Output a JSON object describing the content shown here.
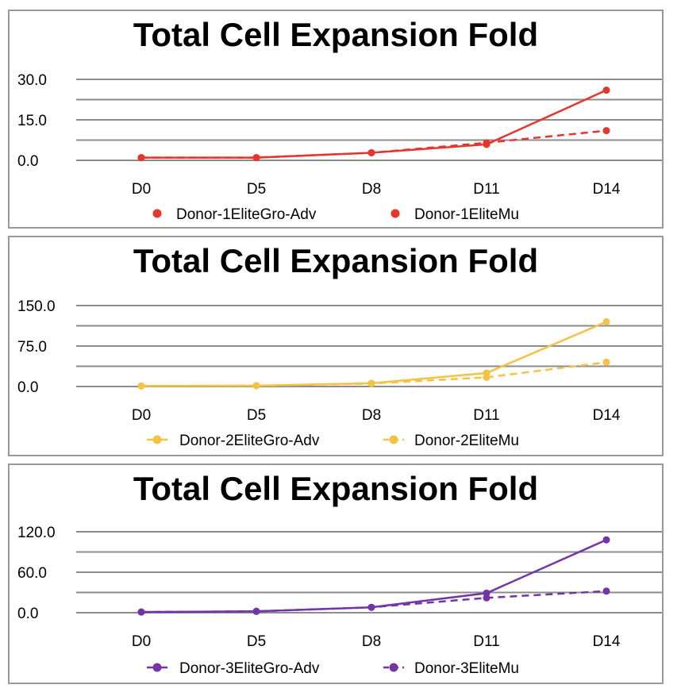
{
  "chart_data": [
    {
      "type": "line",
      "title": "Total Cell Expansion Fold",
      "categories": [
        "D0",
        "D5",
        "D8",
        "D11",
        "D14"
      ],
      "yticks": [
        "0.0",
        "15.0",
        "30.0"
      ],
      "ylim": [
        0,
        30
      ],
      "color": "#e8352a",
      "grid": true,
      "legend_position": "bottom",
      "series": [
        {
          "name": "Donor-1EliteGro-Adv",
          "style": "solid",
          "values": [
            1.0,
            1.0,
            2.8,
            5.9,
            26.0
          ]
        },
        {
          "name": "Donor-1EliteMu",
          "style": "dashed",
          "values": [
            1.0,
            1.0,
            2.8,
            6.5,
            11.0
          ]
        }
      ]
    },
    {
      "type": "line",
      "title": "Total Cell Expansion Fold",
      "categories": [
        "D0",
        "D5",
        "D8",
        "D11",
        "D14"
      ],
      "yticks": [
        "0.0",
        "75.0",
        "150.0"
      ],
      "ylim": [
        0,
        150
      ],
      "color": "#f5c242",
      "grid": true,
      "legend_position": "bottom",
      "series": [
        {
          "name": "Donor-2EliteGro-Adv",
          "style": "solid",
          "values": [
            1.0,
            1.5,
            6.0,
            25.0,
            120.0
          ]
        },
        {
          "name": "Donor-2EliteMu",
          "style": "dashed",
          "values": [
            1.0,
            1.5,
            5.5,
            17.0,
            45.0
          ]
        }
      ]
    },
    {
      "type": "line",
      "title": "Total Cell Expansion Fold",
      "categories": [
        "D0",
        "D5",
        "D8",
        "D11",
        "D14"
      ],
      "yticks": [
        "0.0",
        "60.0",
        "120.0"
      ],
      "ylim": [
        0,
        120
      ],
      "color": "#7234a8",
      "grid": true,
      "legend_position": "bottom",
      "series": [
        {
          "name": "Donor-3EliteGro-Adv",
          "style": "solid",
          "values": [
            1.0,
            2.0,
            8.0,
            29.0,
            108.0
          ]
        },
        {
          "name": "Donor-3EliteMu",
          "style": "dashed",
          "values": [
            1.0,
            2.0,
            8.0,
            22.0,
            32.0
          ]
        }
      ]
    }
  ]
}
